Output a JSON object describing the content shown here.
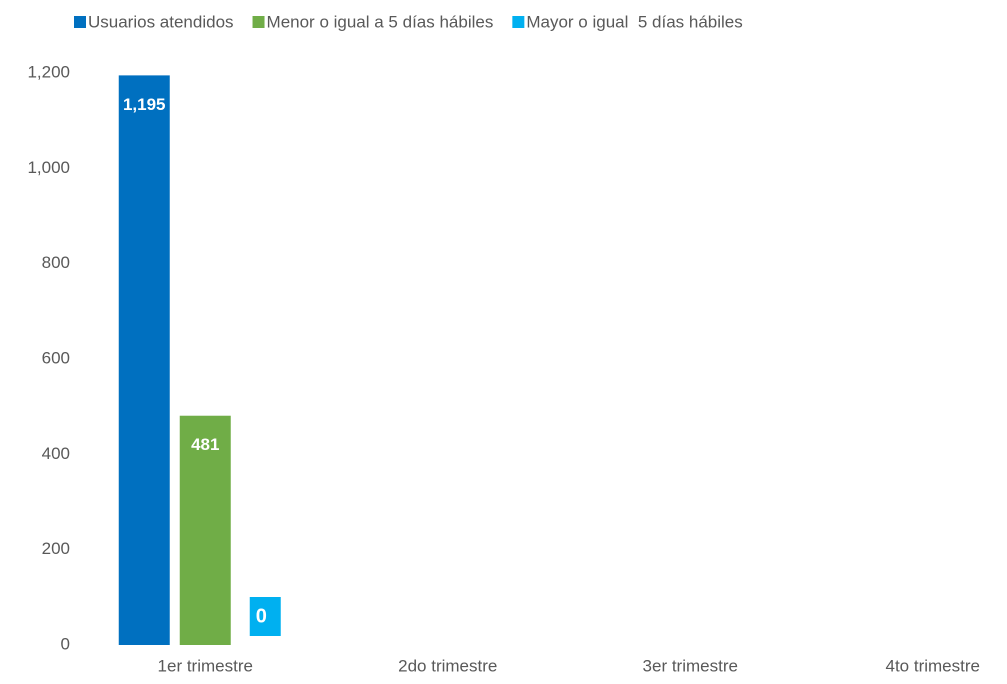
{
  "chart_data": {
    "type": "bar",
    "categories": [
      "1er trimestre",
      "2do trimestre",
      "3er trimestre",
      "4to trimestre"
    ],
    "series": [
      {
        "name": "Usuarios atendidos",
        "color": "#0070c0",
        "values": [
          1195,
          null,
          null,
          null
        ],
        "value_labels": [
          "1,195",
          null,
          null,
          null
        ]
      },
      {
        "name": "Menor o igual a 5 días hábiles",
        "color": "#70ad47",
        "values": [
          481,
          null,
          null,
          null
        ]
      },
      {
        "name": "Mayor o igual  5 días hábiles",
        "color": "#00b0f0",
        "values": [
          0,
          null,
          null,
          null
        ]
      }
    ],
    "ylim": [
      0,
      1200
    ],
    "yticks": [
      0,
      200,
      400,
      600,
      800,
      {
        "value": 1000,
        "label": "1,000"
      },
      {
        "value": 1200,
        "label": "1,200"
      }
    ],
    "grid": false,
    "legend": "top"
  }
}
